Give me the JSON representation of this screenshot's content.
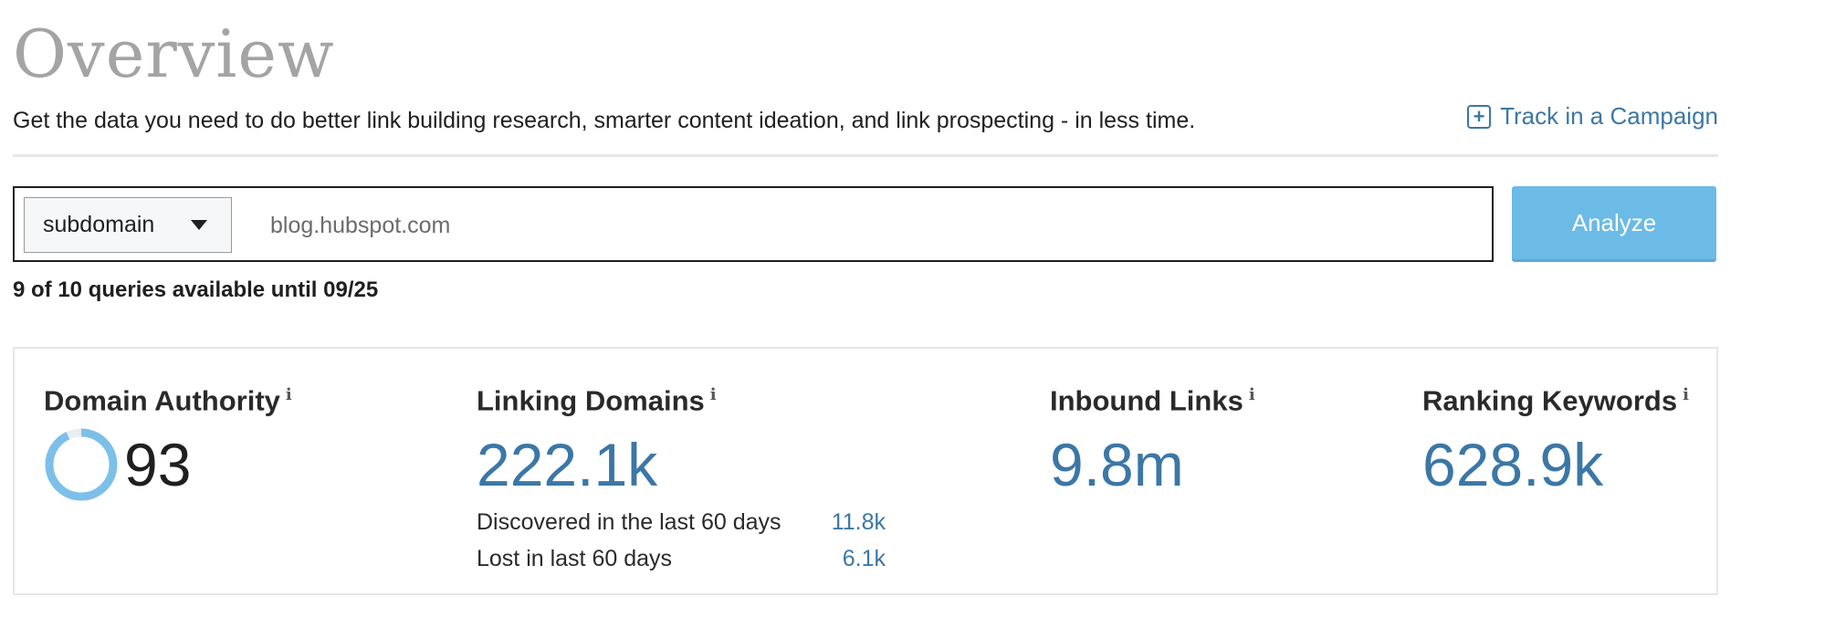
{
  "header": {
    "title": "Overview",
    "subtitle": "Get the data you need to do better link building research, smarter content ideation, and link prospecting - in less time.",
    "track_label": "Track in a Campaign",
    "track_icon": "plus-square-icon"
  },
  "search": {
    "scope_selected": "subdomain",
    "query_value": "blog.hubspot.com",
    "analyze_label": "Analyze",
    "quota_text": "9 of 10 queries available until 09/25"
  },
  "metrics": {
    "domain_authority": {
      "label": "Domain Authority",
      "info": "i",
      "value": "93",
      "ring_fraction": 0.93
    },
    "linking_domains": {
      "label": "Linking Domains",
      "info": "i",
      "value": "222.1k",
      "discovered_label": "Discovered in the last 60 days",
      "discovered_value": "11.8k",
      "lost_label": "Lost in last 60 days",
      "lost_value": "6.1k"
    },
    "inbound_links": {
      "label": "Inbound Links",
      "info": "i",
      "value": "9.8m"
    },
    "ranking_keywords": {
      "label": "Ranking Keywords",
      "info": "i",
      "value": "628.9k"
    }
  },
  "colors": {
    "accent_blue": "#3b77a6",
    "button_blue": "#6cbae6",
    "ring_blue": "#7cc0ea",
    "title_gray": "#a4a4a4"
  }
}
